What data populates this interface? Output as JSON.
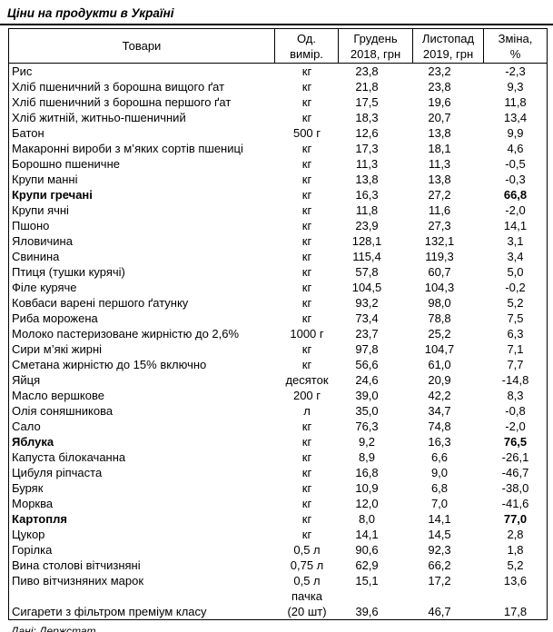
{
  "title": "Ціни на продукти в Україні",
  "source": "Дані: Держстат",
  "table": {
    "headers": {
      "product": "Товари",
      "unit": "Од.\nвимір.",
      "dec": "Грудень\n2018, грн",
      "nov": "Листопад\n2019, грн",
      "chg": "Зміна,\n%"
    },
    "rows": [
      {
        "name": "Рис",
        "unit": "кг",
        "dec": "23,8",
        "nov": "23,2",
        "chg": "-2,3"
      },
      {
        "name": "Хліб пшеничний з борошна вищого ґат",
        "unit": "кг",
        "dec": "21,8",
        "nov": "23,8",
        "chg": "9,3"
      },
      {
        "name": "Хліб пшеничний з борошна першого ґат",
        "unit": "кг",
        "dec": "17,5",
        "nov": "19,6",
        "chg": "11,8"
      },
      {
        "name": "Хліб житній, житньо-пшеничний",
        "unit": "кг",
        "dec": "18,3",
        "nov": "20,7",
        "chg": "13,4"
      },
      {
        "name": "Батон",
        "unit": "500 г",
        "dec": "12,6",
        "nov": "13,8",
        "chg": "9,9"
      },
      {
        "name": "Макаронні вироби з м’яких сортів пшениці",
        "unit": "кг",
        "dec": "17,3",
        "nov": "18,1",
        "chg": "4,6"
      },
      {
        "name": "Борошно пшеничне",
        "unit": "кг",
        "dec": "11,3",
        "nov": "11,3",
        "chg": "-0,5"
      },
      {
        "name": "Крупи манні",
        "unit": "кг",
        "dec": "13,8",
        "nov": "13,8",
        "chg": "-0,3"
      },
      {
        "name": "Крупи гречані",
        "unit": "кг",
        "dec": "16,3",
        "nov": "27,2",
        "chg": "66,8",
        "bold": true
      },
      {
        "name": "Крупи ячні",
        "unit": "кг",
        "dec": "11,8",
        "nov": "11,6",
        "chg": "-2,0"
      },
      {
        "name": "Пшоно",
        "unit": "кг",
        "dec": "23,9",
        "nov": "27,3",
        "chg": "14,1"
      },
      {
        "name": "Яловичина",
        "unit": "кг",
        "dec": "128,1",
        "nov": "132,1",
        "chg": "3,1"
      },
      {
        "name": "Свинина",
        "unit": "кг",
        "dec": "115,4",
        "nov": "119,3",
        "chg": "3,4"
      },
      {
        "name": "Птиця (тушки курячі)",
        "unit": "кг",
        "dec": "57,8",
        "nov": "60,7",
        "chg": "5,0"
      },
      {
        "name": "Філе куряче",
        "unit": "кг",
        "dec": "104,5",
        "nov": "104,3",
        "chg": "-0,2"
      },
      {
        "name": "Ковбаси варені першого ґатунку",
        "unit": "кг",
        "dec": "93,2",
        "nov": "98,0",
        "chg": "5,2"
      },
      {
        "name": "Риба морожена",
        "unit": "кг",
        "dec": "73,4",
        "nov": "78,8",
        "chg": "7,5"
      },
      {
        "name": "Молоко пастеризоване жирністю до 2,6%",
        "unit": "1000 г",
        "dec": "23,7",
        "nov": "25,2",
        "chg": "6,3"
      },
      {
        "name": "Сири м’які жирні",
        "unit": "кг",
        "dec": "97,8",
        "nov": "104,7",
        "chg": "7,1"
      },
      {
        "name": "Сметана жирністю до 15% включно",
        "unit": "кг",
        "dec": "56,6",
        "nov": "61,0",
        "chg": "7,7"
      },
      {
        "name": "Яйця",
        "unit": "десяток",
        "dec": "24,6",
        "nov": "20,9",
        "chg": "-14,8"
      },
      {
        "name": "Масло вершкове",
        "unit": "200 г",
        "dec": "39,0",
        "nov": "42,2",
        "chg": "8,3"
      },
      {
        "name": "Олія соняшникова",
        "unit": "л",
        "dec": "35,0",
        "nov": "34,7",
        "chg": "-0,8"
      },
      {
        "name": "Сало",
        "unit": "кг",
        "dec": "76,3",
        "nov": "74,8",
        "chg": "-2,0"
      },
      {
        "name": "Яблука",
        "unit": "кг",
        "dec": "9,2",
        "nov": "16,3",
        "chg": "76,5",
        "bold": true
      },
      {
        "name": "Капуста білокачанна",
        "unit": "кг",
        "dec": "8,9",
        "nov": "6,6",
        "chg": "-26,1"
      },
      {
        "name": "Цибуля ріпчаста",
        "unit": "кг",
        "dec": "16,8",
        "nov": "9,0",
        "chg": "-46,7"
      },
      {
        "name": "Буряк",
        "unit": "кг",
        "dec": "10,9",
        "nov": "6,8",
        "chg": "-38,0"
      },
      {
        "name": "Морква",
        "unit": "кг",
        "dec": "12,0",
        "nov": "7,0",
        "chg": "-41,6"
      },
      {
        "name": "Картопля",
        "unit": "кг",
        "dec": "8,0",
        "nov": "14,1",
        "chg": "77,0",
        "bold": true
      },
      {
        "name": "Цукор",
        "unit": "кг",
        "dec": "14,1",
        "nov": "14,5",
        "chg": "2,8"
      },
      {
        "name": "Горілка",
        "unit": "0,5 л",
        "dec": "90,6",
        "nov": "92,3",
        "chg": "1,8"
      },
      {
        "name": "Вина столові вітчизняні",
        "unit": "0,75 л",
        "dec": "62,9",
        "nov": "66,2",
        "chg": "5,2"
      },
      {
        "name": "Пиво вітчизняних марок",
        "unit": "0,5 л",
        "dec": "15,1",
        "nov": "17,2",
        "chg": "13,6"
      },
      {
        "name": "Сигарети з фільтром преміум класу",
        "unit": "пачка\n(20 шт)",
        "dec": "39,6",
        "nov": "46,7",
        "chg": "17,8",
        "tall": true
      }
    ]
  }
}
